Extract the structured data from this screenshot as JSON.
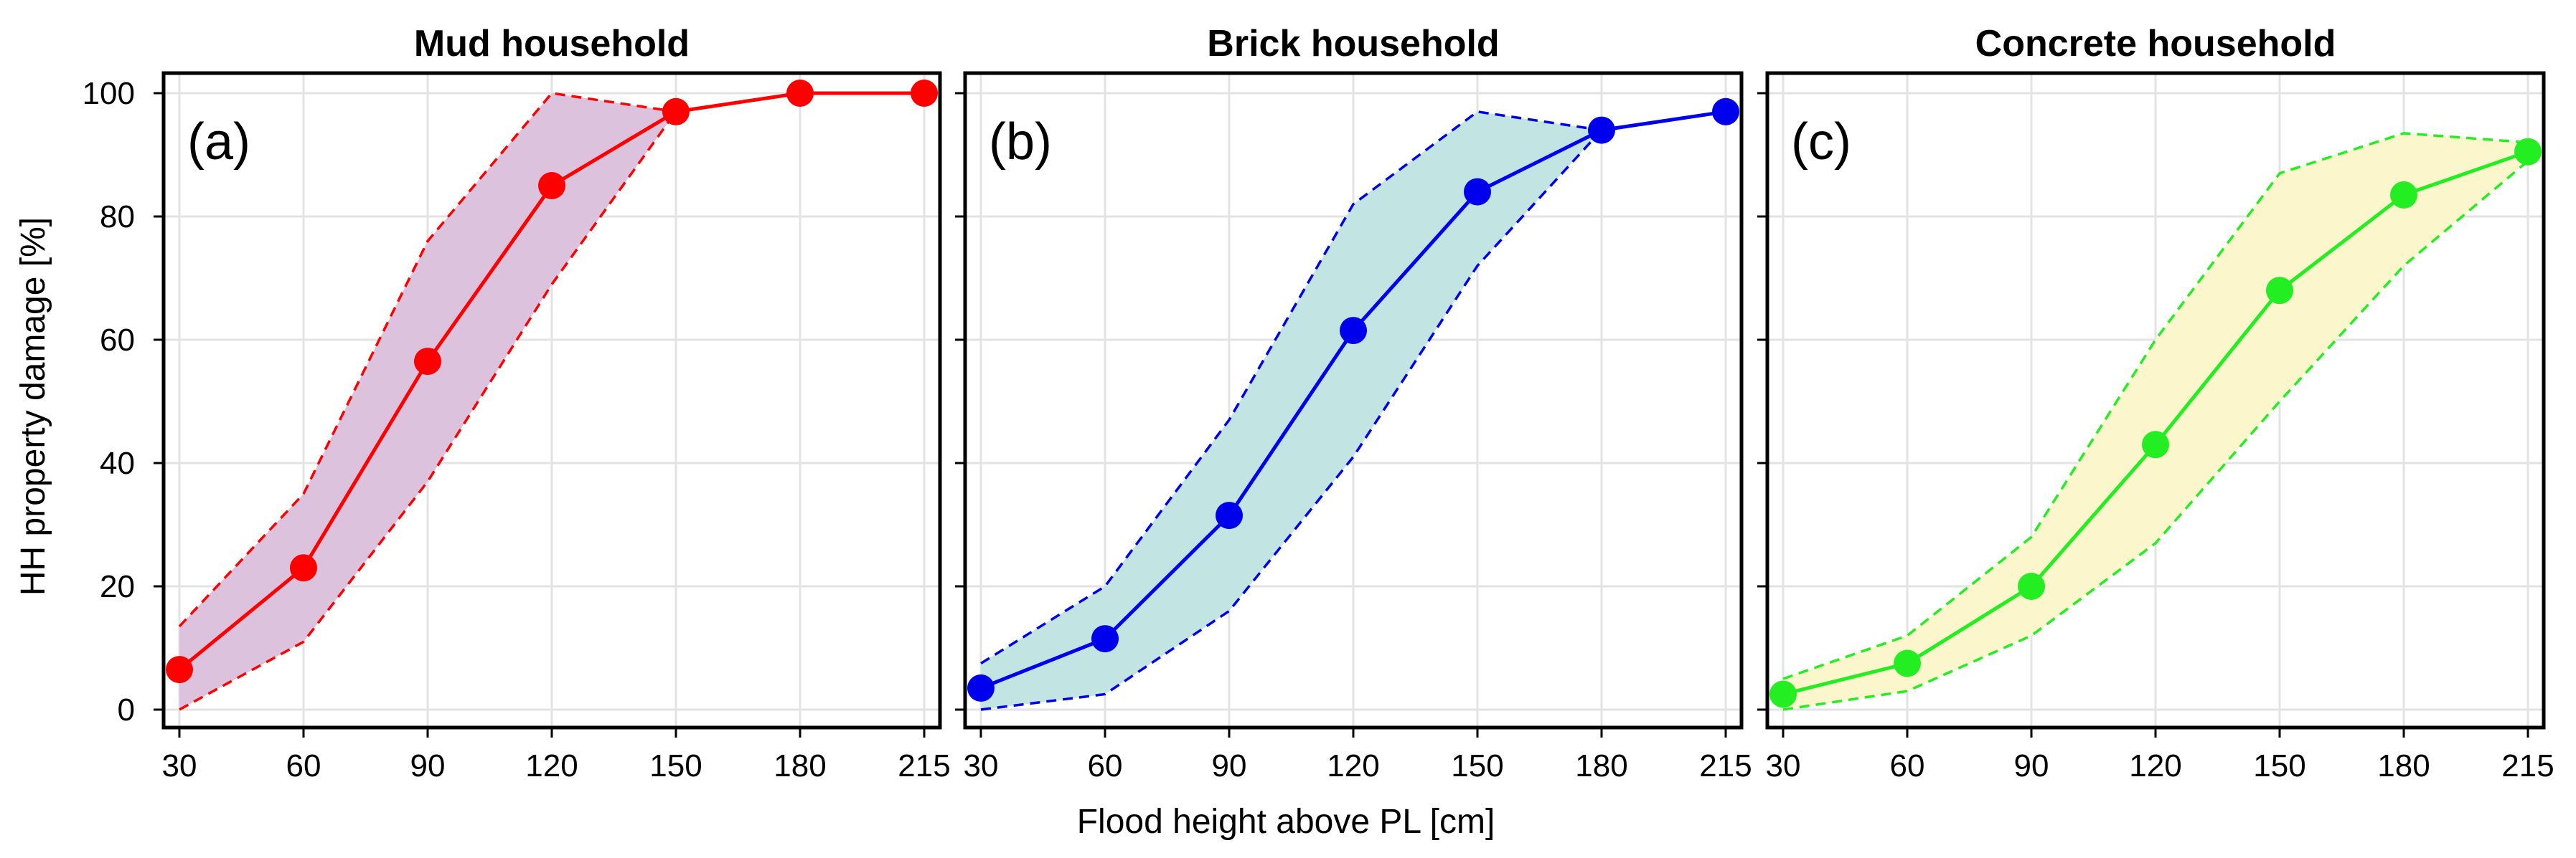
{
  "figure": {
    "ylabel": "HH property damage [%]",
    "xlabel": "Flood height above PL [cm]"
  },
  "chart_data": [
    {
      "type": "line",
      "panel_label": "(a)",
      "title": "Mud household",
      "categories": [
        "30",
        "60",
        "90",
        "120",
        "150",
        "180",
        "215"
      ],
      "series": [
        {
          "values": [
            6.5,
            23,
            56.5,
            85,
            97,
            100,
            100
          ],
          "color": "#ff0000"
        }
      ],
      "band": {
        "upper": [
          13.5,
          35,
          76,
          100,
          97
        ],
        "lower": [
          0,
          11,
          37,
          69,
          97
        ],
        "fill": "#dcc2dc",
        "edge": "#ff0000"
      },
      "ylim": [
        0,
        100
      ],
      "yticks": [
        0,
        20,
        40,
        60,
        80,
        100
      ],
      "grid": true
    },
    {
      "type": "line",
      "panel_label": "(b)",
      "title": "Brick household",
      "categories": [
        "30",
        "60",
        "90",
        "120",
        "150",
        "180",
        "215"
      ],
      "series": [
        {
          "values": [
            3.5,
            11.5,
            31.5,
            61.5,
            84,
            94,
            97
          ],
          "color": "#0000ee"
        }
      ],
      "band": {
        "upper": [
          7.5,
          20,
          47,
          82,
          97,
          94
        ],
        "lower": [
          0,
          2.5,
          16,
          41,
          72,
          94
        ],
        "fill": "#c2e4e2",
        "edge": "#0000ee"
      },
      "ylim": [
        0,
        100
      ],
      "yticks": [
        0,
        20,
        40,
        60,
        80,
        100
      ],
      "grid": true
    },
    {
      "type": "line",
      "panel_label": "(c)",
      "title": "Concrete household",
      "categories": [
        "30",
        "60",
        "90",
        "120",
        "150",
        "180",
        "215"
      ],
      "series": [
        {
          "values": [
            2.5,
            7.5,
            20,
            43,
            68,
            83.5,
            90.5
          ],
          "color": "#22ee22"
        }
      ],
      "band": {
        "upper": [
          5,
          12,
          28,
          60,
          87,
          93.5,
          92
        ],
        "lower": [
          0,
          3,
          12,
          27,
          50,
          72,
          89
        ],
        "fill": "#fbf6cc",
        "edge": "#22ee22"
      },
      "ylim": [
        0,
        100
      ],
      "yticks": [
        0,
        20,
        40,
        60,
        80,
        100
      ],
      "grid": true
    }
  ]
}
